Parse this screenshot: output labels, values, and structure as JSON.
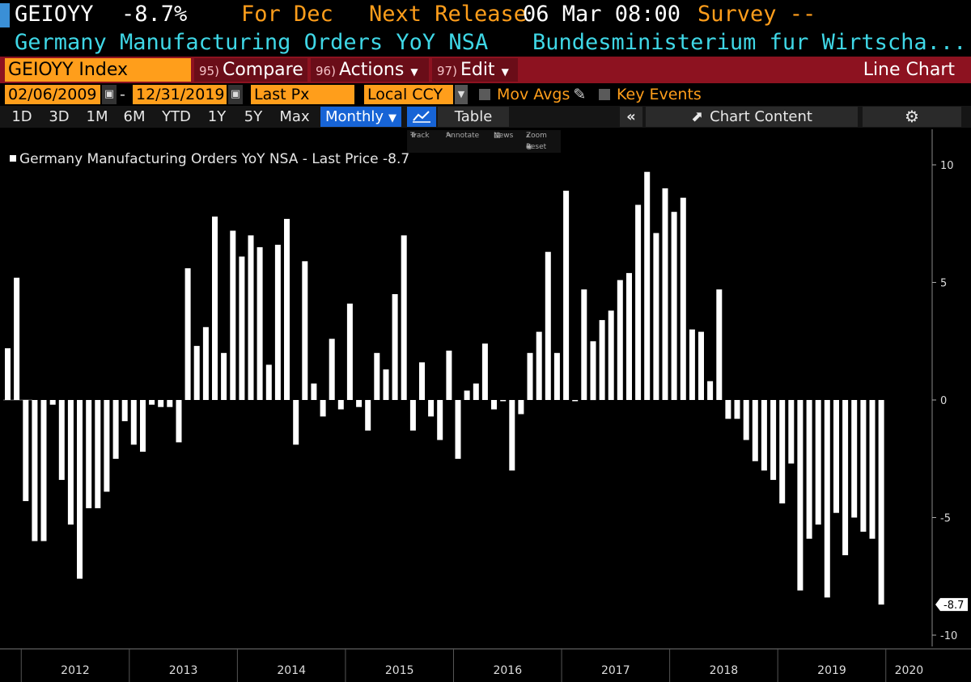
{
  "header": {
    "ticker": "GEIOYY",
    "last_value": "-8.7%",
    "for_label": "For Dec",
    "next_release_label": "Next Release",
    "next_release_value": "06 Mar 08:00",
    "survey_label": "Survey --",
    "series_title": "Germany Manufacturing Orders YoY NSA",
    "source": "Bundesministerium fur Wirtscha..."
  },
  "toolbar": {
    "index_label": "GEIOYY Index",
    "compare_num": "95)",
    "compare_label": "Compare",
    "actions_num": "96)",
    "actions_label": "Actions",
    "edit_num": "97)",
    "edit_label": "Edit",
    "chart_type": "Line Chart"
  },
  "settings": {
    "start_date": "02/06/2009",
    "dash": "-",
    "end_date": "12/31/2019",
    "price_field": "Last Px",
    "currency": "Local CCY",
    "mov_avgs": "Mov Avgs",
    "key_events": "Key Events"
  },
  "ranges": {
    "buttons": [
      "1D",
      "3D",
      "1M",
      "6M",
      "YTD",
      "1Y",
      "5Y",
      "Max"
    ],
    "period": "Monthly",
    "table_label": "Table",
    "chart_content": "Chart Content"
  },
  "zoom_tools": {
    "track": "Track",
    "annotate": "Annotate",
    "news": "News",
    "zoom": "Zoom",
    "reset": "Reset"
  },
  "colors": {
    "amber": "#ff9e1b",
    "cyan": "#3fd7e6",
    "bar": "#ffffff",
    "toolbar_red": "#8d1220",
    "active_blue": "#1764d6"
  },
  "chart_data": {
    "type": "bar",
    "title": "Germany Manufacturing Orders YoY NSA - Last Price -8.7",
    "legend": "Germany Manufacturing Orders YoY NSA - Last Price -8.7",
    "last_price_label": "-8.7",
    "ylim": [
      -10.5,
      11
    ],
    "yticks": [
      10,
      5,
      0,
      -5,
      -10
    ],
    "year_labels": [
      "2012",
      "2013",
      "2014",
      "2015",
      "2016",
      "2017",
      "2018",
      "2019",
      "2020"
    ],
    "start": "Nov 2011",
    "frequency": "monthly",
    "values": [
      2.2,
      5.2,
      -4.3,
      -6.0,
      -6.0,
      -0.2,
      -3.4,
      -5.3,
      -7.6,
      -4.6,
      -4.6,
      -3.9,
      -2.5,
      -0.9,
      -1.9,
      -2.2,
      -0.2,
      -0.3,
      -0.3,
      -1.8,
      5.6,
      2.3,
      3.1,
      7.8,
      2.0,
      7.2,
      6.1,
      7.0,
      6.5,
      1.5,
      6.6,
      7.7,
      -1.9,
      5.9,
      0.7,
      -0.7,
      2.6,
      -0.4,
      4.1,
      -0.3,
      -1.3,
      2.0,
      1.3,
      4.5,
      7.0,
      -1.3,
      1.6,
      -0.7,
      -1.7,
      2.1,
      -2.5,
      0.4,
      0.7,
      2.4,
      -0.4,
      -0.05,
      -3.0,
      -0.6,
      2.0,
      2.9,
      6.3,
      2.0,
      8.9,
      -0.05,
      4.7,
      2.5,
      3.4,
      3.8,
      5.1,
      5.4,
      8.3,
      9.7,
      7.1,
      9.0,
      8.0,
      8.6,
      3.0,
      2.9,
      0.8,
      4.7,
      -0.8,
      -0.8,
      -1.7,
      -2.6,
      -3.0,
      -3.4,
      -4.4,
      -2.7,
      -8.1,
      -5.9,
      -5.3,
      -8.4,
      -4.8,
      -6.6,
      -5.0,
      -5.6,
      -5.9,
      -8.7
    ]
  }
}
